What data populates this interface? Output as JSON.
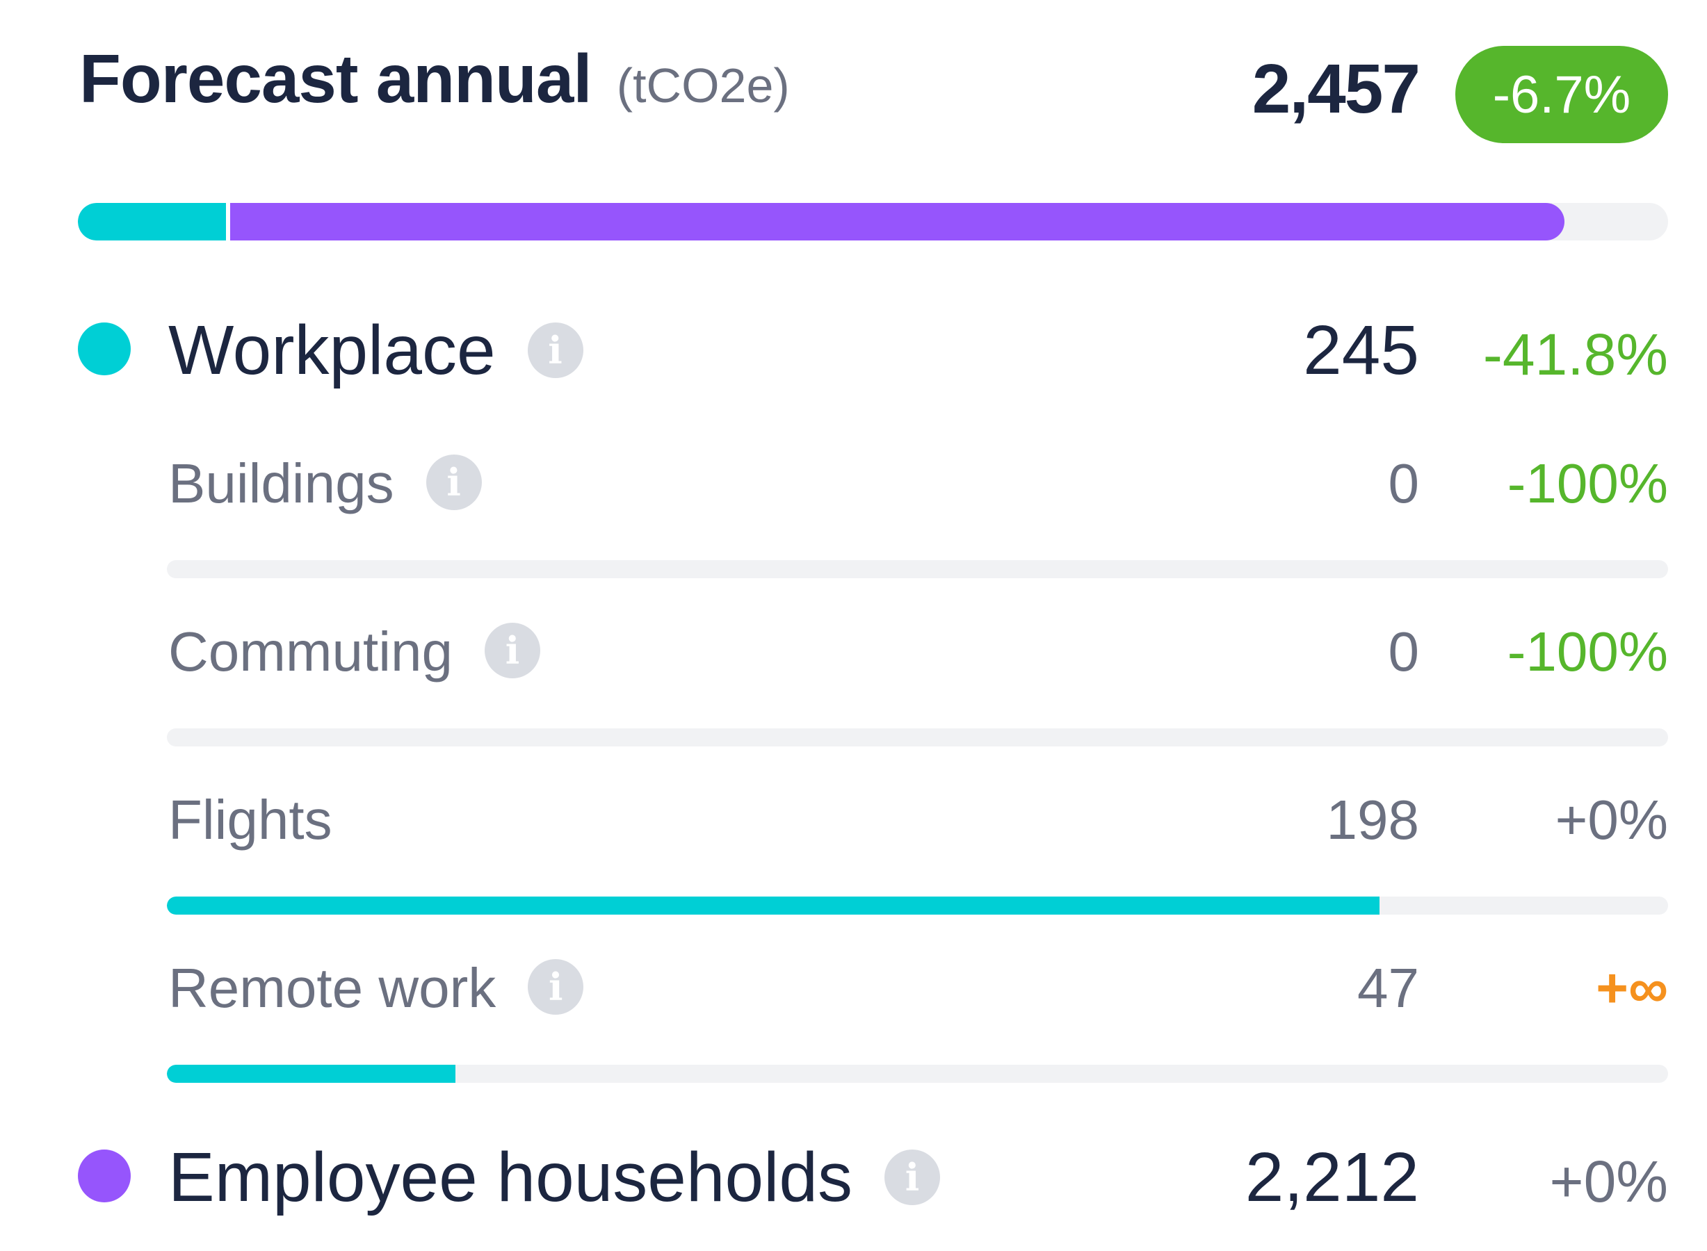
{
  "header": {
    "title": "Forecast annual",
    "unit": "(tCO2e)",
    "total": "2,457",
    "change": "-6.7%"
  },
  "colors": {
    "workplace": "#00cfd5",
    "households": "#9655fc",
    "positive_change": "#56b62c",
    "neutral_change": "#6b7080",
    "infinite_change": "#f5911e"
  },
  "stack": {
    "workplace_share": 0.0997,
    "households_share": 0.9003
  },
  "categories": [
    {
      "label": "Workplace",
      "value": "245",
      "change": "-41.8%",
      "icon": "info-icon",
      "subitems": [
        {
          "label": "Buildings",
          "value": "0",
          "change": "-100%",
          "icon": "info-icon",
          "fill": 0
        },
        {
          "label": "Commuting",
          "value": "0",
          "change": "-100%",
          "icon": "info-icon",
          "fill": 0
        },
        {
          "label": "Flights",
          "value": "198",
          "change": "+0%",
          "fill": 0.808
        },
        {
          "label": "Remote work",
          "value": "47",
          "change": "+∞",
          "icon": "info-icon",
          "fill": 0.192
        }
      ]
    },
    {
      "label": "Employee households",
      "value": "2,212",
      "change": "+0%",
      "icon": "info-icon"
    }
  ]
}
